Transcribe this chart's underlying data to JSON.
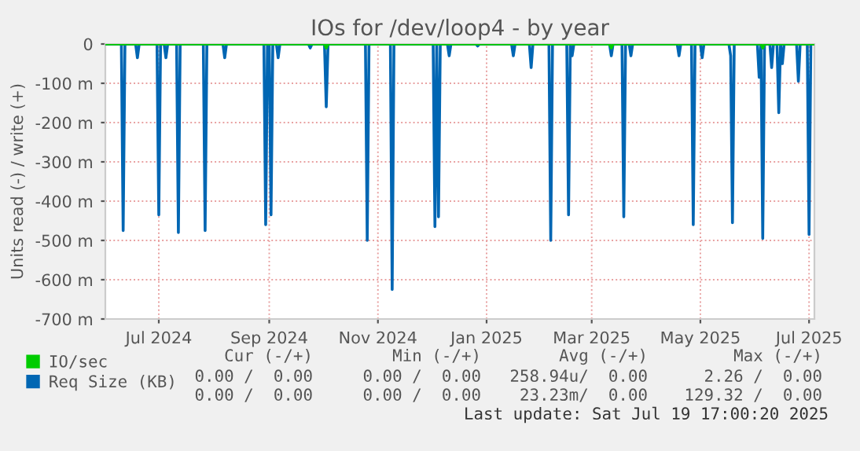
{
  "chart_data": {
    "type": "line",
    "title": "IOs for /dev/loop4 - by year",
    "ylabel": "Units read (-) / write (+)",
    "series": [
      {
        "name": "IO/sec",
        "color": "#00cc00",
        "x": [
          "2024-06-16",
          "2024-10-17",
          "2024-10-18",
          "2024-10-19",
          "2025-03-26",
          "2025-03-27",
          "2025-03-28",
          "2025-06-19",
          "2025-06-20",
          "2025-06-21",
          "2025-07-19"
        ],
        "values": [
          0,
          0,
          -10,
          0,
          0,
          -10,
          0,
          0,
          -10,
          0,
          0
        ]
      },
      {
        "name": "Req Size (KB)",
        "color": "#0066b3",
        "x": [
          "2024-06-16",
          "2024-06-25",
          "2024-06-26",
          "2024-06-27",
          "2024-07-03",
          "2024-07-04",
          "2024-07-05",
          "2024-07-15",
          "2024-07-16",
          "2024-07-17",
          "2024-07-19",
          "2024-07-20",
          "2024-07-21",
          "2024-07-26",
          "2024-07-27",
          "2024-07-28",
          "2024-08-10",
          "2024-08-11",
          "2024-08-12",
          "2024-08-21",
          "2024-08-22",
          "2024-08-23",
          "2024-09-13",
          "2024-09-14",
          "2024-09-15",
          "2024-09-16",
          "2024-09-17",
          "2024-09-18",
          "2024-09-20",
          "2024-09-21",
          "2024-09-22",
          "2024-10-08",
          "2024-10-09",
          "2024-10-10",
          "2024-10-17",
          "2024-10-18",
          "2024-10-19",
          "2024-11-09",
          "2024-11-10",
          "2024-11-11",
          "2024-11-23",
          "2024-11-24",
          "2024-11-25",
          "2024-12-17",
          "2024-12-18",
          "2024-12-19",
          "2024-12-20",
          "2024-12-21",
          "2024-12-25",
          "2024-12-26",
          "2024-12-27",
          "2025-01-10",
          "2025-01-11",
          "2025-01-12",
          "2025-01-30",
          "2025-01-31",
          "2025-02-01",
          "2025-02-09",
          "2025-02-10",
          "2025-02-11",
          "2025-02-20",
          "2025-02-21",
          "2025-02-22",
          "2025-03-02",
          "2025-03-03",
          "2025-03-04",
          "2025-03-05",
          "2025-03-06",
          "2025-03-26",
          "2025-03-27",
          "2025-03-28",
          "2025-04-02",
          "2025-04-03",
          "2025-04-04",
          "2025-04-06",
          "2025-04-07",
          "2025-04-08",
          "2025-05-03",
          "2025-05-04",
          "2025-05-05",
          "2025-05-11",
          "2025-05-12",
          "2025-05-13",
          "2025-05-16",
          "2025-05-17",
          "2025-05-18",
          "2025-06-01",
          "2025-06-02",
          "2025-06-03",
          "2025-06-04",
          "2025-06-17",
          "2025-06-18",
          "2025-06-19",
          "2025-06-20",
          "2025-06-21",
          "2025-06-24",
          "2025-06-25",
          "2025-06-26",
          "2025-06-28",
          "2025-06-29",
          "2025-06-30",
          "2025-07-01",
          "2025-07-02",
          "2025-07-09",
          "2025-07-10",
          "2025-07-11",
          "2025-07-15",
          "2025-07-16",
          "2025-07-17",
          "2025-07-19"
        ],
        "values": [
          0,
          0,
          -475,
          0,
          0,
          -35,
          0,
          0,
          -435,
          0,
          0,
          -35,
          0,
          0,
          -480,
          0,
          0,
          -475,
          0,
          0,
          -35,
          0,
          0,
          -460,
          0,
          0,
          -435,
          0,
          0,
          -35,
          0,
          0,
          -10,
          0,
          0,
          -160,
          0,
          0,
          -500,
          0,
          0,
          -625,
          0,
          0,
          -465,
          0,
          -440,
          0,
          0,
          -30,
          0,
          0,
          -5,
          0,
          0,
          -30,
          0,
          0,
          -60,
          0,
          0,
          -500,
          0,
          0,
          -435,
          0,
          -30,
          0,
          0,
          -30,
          0,
          0,
          -440,
          0,
          0,
          -30,
          0,
          0,
          -30,
          0,
          0,
          -460,
          0,
          0,
          -35,
          0,
          0,
          -30,
          -455,
          0,
          0,
          -85,
          0,
          -495,
          0,
          0,
          -60,
          0,
          0,
          -175,
          0,
          -50,
          0,
          0,
          -95,
          0,
          0,
          -485,
          0,
          0
        ]
      }
    ],
    "xlim": [
      "2024-06-16",
      "2025-07-19"
    ],
    "xticks": [
      {
        "value": "2024-07-16",
        "label": "Jul 2024"
      },
      {
        "value": "2024-09-16",
        "label": "Sep 2024"
      },
      {
        "value": "2024-11-16",
        "label": "Nov 2024"
      },
      {
        "value": "2025-01-16",
        "label": "Jan 2025"
      },
      {
        "value": "2025-03-16",
        "label": "Mar 2025"
      },
      {
        "value": "2025-05-16",
        "label": "May 2025"
      },
      {
        "value": "2025-07-16",
        "label": "Jul 2025"
      }
    ],
    "ylim": [
      -700,
      0
    ],
    "yticks": [
      0,
      {
        "value": -100,
        "label": "-100 m"
      },
      {
        "value": -200,
        "label": "-200 m"
      },
      {
        "value": -300,
        "label": "-300 m"
      },
      {
        "value": -400,
        "label": "-400 m"
      },
      {
        "value": -500,
        "label": "-500 m"
      },
      {
        "value": -600,
        "label": "-600 m"
      },
      {
        "value": -700,
        "label": "-700 m"
      }
    ],
    "ref_lines": [
      {
        "axis": "y",
        "value": 0,
        "color": "#000000"
      }
    ],
    "grid": true,
    "legend": "bottom left",
    "annotations": [
      "Cur (-/+)",
      "Min (-/+)",
      "Avg (-/+)",
      "Max (-/+)",
      "0.00 /  0.00",
      "0.00 /  0.00",
      "258.94u/  0.00",
      "2.26 /  0.00",
      "0.00 /  0.00",
      "0.00 /  0.00",
      "23.23m/  0.00",
      "129.32 /  0.00",
      "Last update: Sat Jul 19 17:00:20 2025"
    ]
  }
}
